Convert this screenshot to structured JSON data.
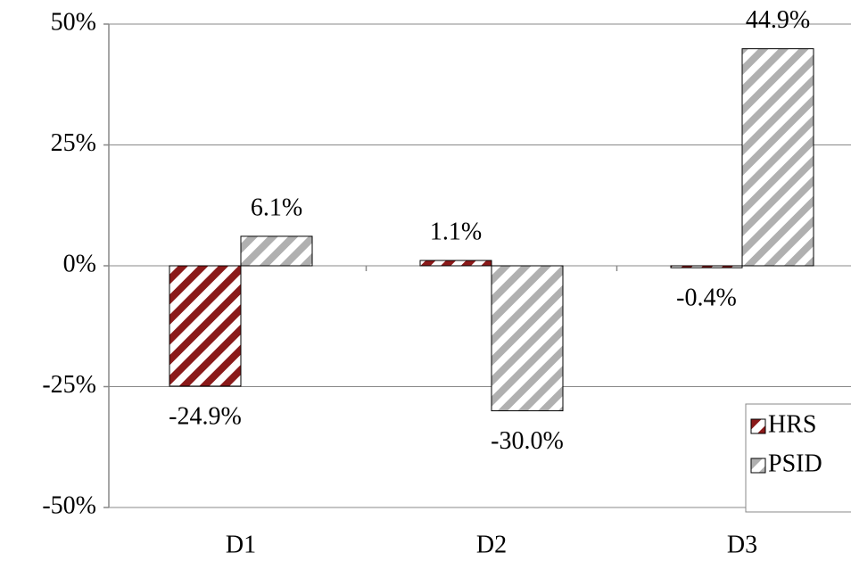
{
  "chart_data": {
    "type": "bar",
    "categories": [
      "D1",
      "D2",
      "D3"
    ],
    "series": [
      {
        "name": "HRS",
        "color": "#8b1a1a",
        "values": [
          -24.9,
          1.1,
          -0.4
        ],
        "value_labels": [
          "-24.9%",
          "1.1%",
          "-0.4%"
        ]
      },
      {
        "name": "PSID",
        "color": "#b0b0b0",
        "values": [
          6.1,
          -30.0,
          44.9
        ],
        "value_labels": [
          "6.1%",
          "-30.0%",
          "44.9%"
        ]
      }
    ],
    "ylim": [
      -50,
      50
    ],
    "yticks": [
      {
        "value": -50,
        "label": "-50%"
      },
      {
        "value": -25,
        "label": "-25%"
      },
      {
        "value": 0,
        "label": "0%"
      },
      {
        "value": 25,
        "label": "25%"
      },
      {
        "value": 50,
        "label": "50%"
      }
    ],
    "grid": true,
    "legend": "bottom-right"
  }
}
